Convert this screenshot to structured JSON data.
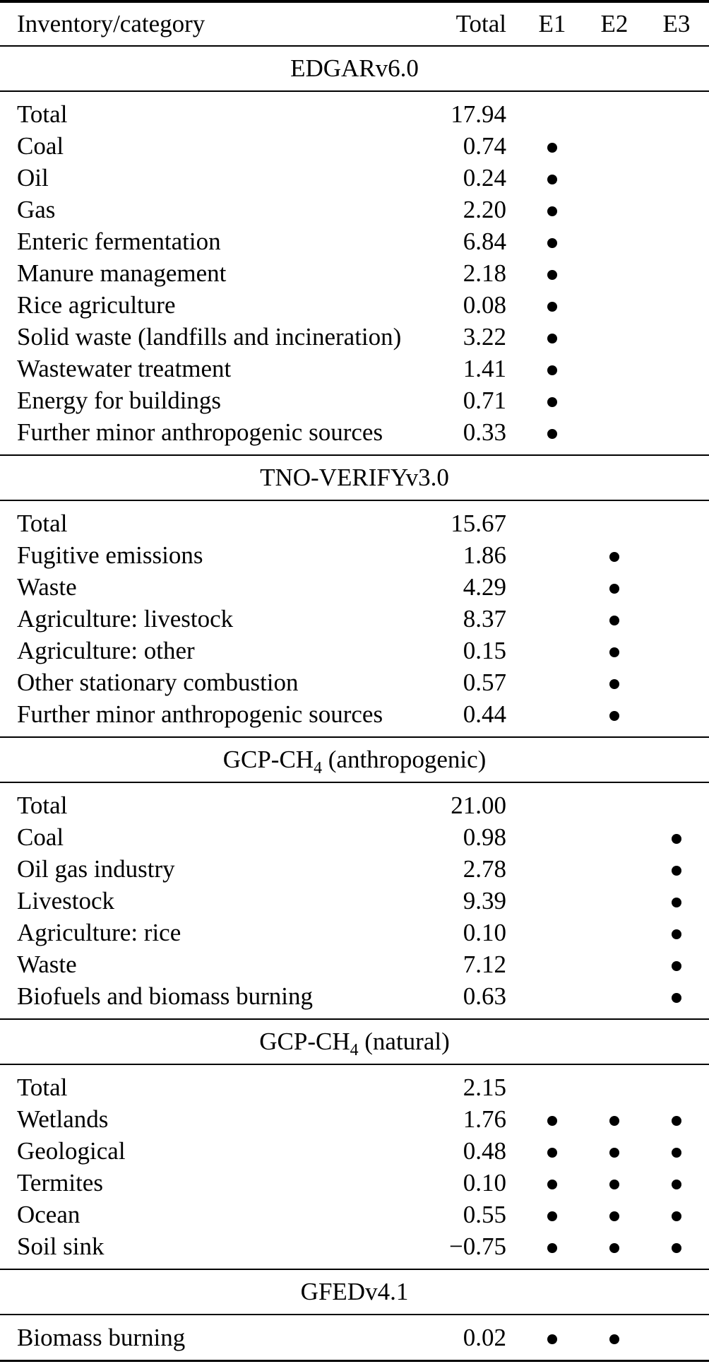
{
  "style": {
    "text_color": "#000000",
    "rule_color": "#000000",
    "background": "#ffffff"
  },
  "table": {
    "columns": [
      "Inventory/category",
      "Total",
      "E1",
      "E2",
      "E3"
    ],
    "sections": [
      {
        "title": [
          {
            "text": "EDGARv6.0"
          }
        ],
        "rows": [
          {
            "label": "Total",
            "total": "17.94",
            "e1": false,
            "e2": false,
            "e3": false
          },
          {
            "label": "Coal",
            "total": "0.74",
            "e1": true,
            "e2": false,
            "e3": false
          },
          {
            "label": "Oil",
            "total": "0.24",
            "e1": true,
            "e2": false,
            "e3": false
          },
          {
            "label": "Gas",
            "total": "2.20",
            "e1": true,
            "e2": false,
            "e3": false
          },
          {
            "label": "Enteric fermentation",
            "total": "6.84",
            "e1": true,
            "e2": false,
            "e3": false
          },
          {
            "label": "Manure management",
            "total": "2.18",
            "e1": true,
            "e2": false,
            "e3": false
          },
          {
            "label": "Rice agriculture",
            "total": "0.08",
            "e1": true,
            "e2": false,
            "e3": false
          },
          {
            "label": "Solid waste (landfills and incineration)",
            "total": "3.22",
            "e1": true,
            "e2": false,
            "e3": false
          },
          {
            "label": "Wastewater treatment",
            "total": "1.41",
            "e1": true,
            "e2": false,
            "e3": false
          },
          {
            "label": "Energy for buildings",
            "total": "0.71",
            "e1": true,
            "e2": false,
            "e3": false
          },
          {
            "label": "Further minor anthropogenic sources",
            "total": "0.33",
            "e1": true,
            "e2": false,
            "e3": false
          }
        ]
      },
      {
        "title": [
          {
            "text": "TNO-VERIFYv3.0"
          }
        ],
        "rows": [
          {
            "label": "Total",
            "total": "15.67",
            "e1": false,
            "e2": false,
            "e3": false
          },
          {
            "label": "Fugitive emissions",
            "total": "1.86",
            "e1": false,
            "e2": true,
            "e3": false
          },
          {
            "label": "Waste",
            "total": "4.29",
            "e1": false,
            "e2": true,
            "e3": false
          },
          {
            "label": "Agriculture: livestock",
            "total": "8.37",
            "e1": false,
            "e2": true,
            "e3": false
          },
          {
            "label": "Agriculture: other",
            "total": "0.15",
            "e1": false,
            "e2": true,
            "e3": false
          },
          {
            "label": "Other stationary combustion",
            "total": "0.57",
            "e1": false,
            "e2": true,
            "e3": false
          },
          {
            "label": "Further minor anthropogenic sources",
            "total": "0.44",
            "e1": false,
            "e2": true,
            "e3": false
          }
        ]
      },
      {
        "title": [
          {
            "text": "GCP-CH"
          },
          {
            "text": "4",
            "sub": true
          },
          {
            "text": " (anthropogenic)"
          }
        ],
        "rows": [
          {
            "label": "Total",
            "total": "21.00",
            "e1": false,
            "e2": false,
            "e3": false
          },
          {
            "label": "Coal",
            "total": "0.98",
            "e1": false,
            "e2": false,
            "e3": true
          },
          {
            "label": "Oil gas industry",
            "total": "2.78",
            "e1": false,
            "e2": false,
            "e3": true
          },
          {
            "label": "Livestock",
            "total": "9.39",
            "e1": false,
            "e2": false,
            "e3": true
          },
          {
            "label": "Agriculture: rice",
            "total": "0.10",
            "e1": false,
            "e2": false,
            "e3": true
          },
          {
            "label": "Waste",
            "total": "7.12",
            "e1": false,
            "e2": false,
            "e3": true
          },
          {
            "label": "Biofuels and biomass burning",
            "total": "0.63",
            "e1": false,
            "e2": false,
            "e3": true
          }
        ]
      },
      {
        "title": [
          {
            "text": "GCP-CH"
          },
          {
            "text": "4",
            "sub": true
          },
          {
            "text": " (natural)"
          }
        ],
        "rows": [
          {
            "label": "Total",
            "total": "2.15",
            "e1": false,
            "e2": false,
            "e3": false
          },
          {
            "label": "Wetlands",
            "total": "1.76",
            "e1": true,
            "e2": true,
            "e3": true
          },
          {
            "label": "Geological",
            "total": "0.48",
            "e1": true,
            "e2": true,
            "e3": true
          },
          {
            "label": "Termites",
            "total": "0.10",
            "e1": true,
            "e2": true,
            "e3": true
          },
          {
            "label": "Ocean",
            "total": "0.55",
            "e1": true,
            "e2": true,
            "e3": true
          },
          {
            "label": "Soil sink",
            "total": "−0.75",
            "e1": true,
            "e2": true,
            "e3": true
          }
        ]
      },
      {
        "title": [
          {
            "text": "GFEDv4.1"
          }
        ],
        "rows": [
          {
            "label": "Biomass burning",
            "total": "0.02",
            "e1": true,
            "e2": true,
            "e3": false
          }
        ]
      }
    ]
  }
}
